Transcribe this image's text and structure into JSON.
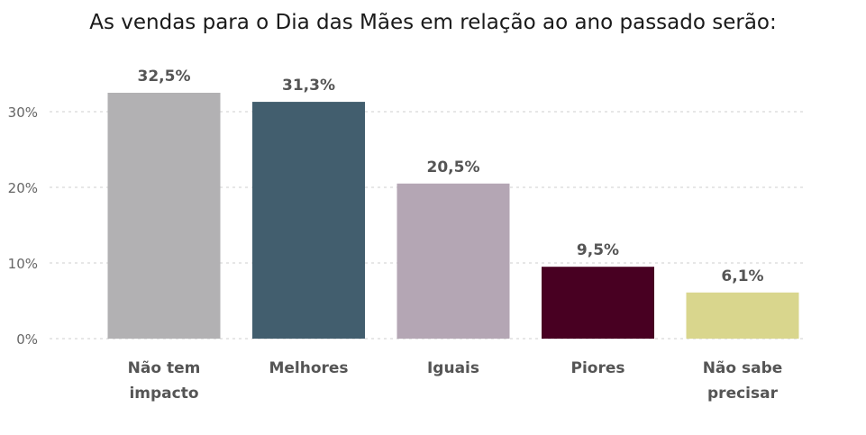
{
  "chart_data": {
    "type": "bar",
    "title": "As vendas para o Dia das Mães em relação ao ano passado serão:",
    "xlabel": "",
    "ylabel": "",
    "categories": [
      [
        "Não tem",
        "impacto"
      ],
      [
        "Melhores"
      ],
      [
        "Iguais"
      ],
      [
        "Piores"
      ],
      [
        "Não sabe",
        "precisar"
      ]
    ],
    "values": [
      32.5,
      31.3,
      20.5,
      9.5,
      6.1
    ],
    "value_labels": [
      "32,5%",
      "31,3%",
      "20,5%",
      "9,5%",
      "6,1%"
    ],
    "colors": [
      "#b2b1b3",
      "#425e6e",
      "#b4a6b4",
      "#480022",
      "#d9d68d"
    ],
    "ylim": [
      0,
      35
    ],
    "yticks": [
      0,
      10,
      20,
      30
    ],
    "ytick_labels": [
      "0%",
      "10%",
      "20%",
      "30%"
    ],
    "grid": true,
    "legend": "none"
  }
}
